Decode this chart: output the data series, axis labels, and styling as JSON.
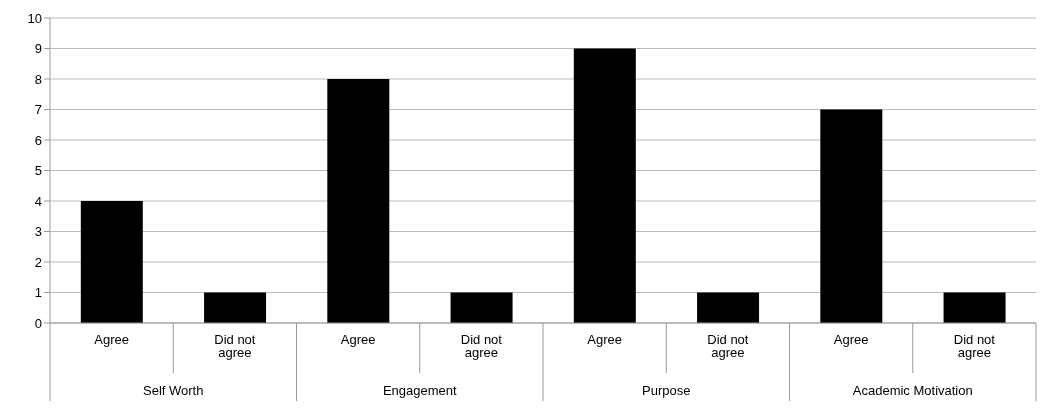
{
  "chart_data": {
    "type": "bar",
    "categories": [
      "Agree",
      "Did not agree",
      "Agree",
      "Did not agree",
      "Agree",
      "Did not agree",
      "Agree",
      "Did not agree"
    ],
    "values": [
      4,
      1,
      8,
      1,
      9,
      1,
      7,
      1
    ],
    "color": "#000000",
    "ylim": [
      0,
      10
    ],
    "yticks": [
      0,
      1,
      2,
      3,
      4,
      5,
      6,
      7,
      8,
      9,
      10
    ],
    "grid": "y",
    "annotations": [
      "Self Worth",
      "Engagement",
      "Purpose",
      "Academic Motivation"
    ]
  }
}
